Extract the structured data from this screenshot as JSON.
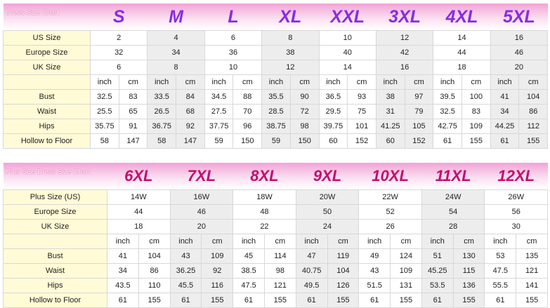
{
  "tables": [
    {
      "title": "Dress Size Chart",
      "sizes": [
        "S",
        "M",
        "L",
        "XL",
        "XXL",
        "3XL",
        "4XL",
        "5XL"
      ],
      "size_rows": [
        {
          "label": "US Size",
          "values": [
            2,
            4,
            6,
            8,
            10,
            12,
            14,
            16
          ]
        },
        {
          "label": "Europe Size",
          "values": [
            32,
            34,
            36,
            38,
            40,
            42,
            44,
            46
          ]
        },
        {
          "label": "UK Size",
          "values": [
            6,
            8,
            10,
            12,
            14,
            16,
            18,
            20
          ]
        }
      ],
      "units": [
        "inch",
        "cm"
      ],
      "measure_rows": [
        {
          "label": "Bust",
          "values": [
            32.5,
            83,
            33.5,
            84,
            34.5,
            88,
            35.5,
            90,
            36.5,
            93,
            38,
            97,
            39.5,
            100,
            41,
            104
          ]
        },
        {
          "label": "Waist",
          "values": [
            25.5,
            65,
            26.5,
            68,
            27.5,
            70,
            28.5,
            72,
            29.5,
            75,
            31,
            79,
            32.5,
            83,
            34,
            86
          ]
        },
        {
          "label": "Hips",
          "values": [
            35.75,
            91,
            36.75,
            92,
            37.75,
            96,
            38.75,
            98,
            39.75,
            101,
            41.25,
            105,
            42.75,
            109,
            44.25,
            112
          ]
        },
        {
          "label": "Hollow to Floor",
          "values": [
            58,
            147,
            58,
            147,
            59,
            150,
            59,
            150,
            60,
            152,
            60,
            152,
            61,
            155,
            61,
            155
          ]
        }
      ]
    },
    {
      "title": "Plus Size Dress Size Chart",
      "sizes": [
        "6XL",
        "7XL",
        "8XL",
        "9XL",
        "10XL",
        "11XL",
        "12XL"
      ],
      "size_rows": [
        {
          "label": "Plus Size (US)",
          "values": [
            "14W",
            "16W",
            "18W",
            "20W",
            "22W",
            "24W",
            "26W"
          ]
        },
        {
          "label": "Europe Size",
          "values": [
            44,
            46,
            48,
            50,
            52,
            54,
            56
          ]
        },
        {
          "label": "UK Size",
          "values": [
            18,
            20,
            22,
            24,
            26,
            28,
            30
          ]
        }
      ],
      "units": [
        "inch",
        "cm"
      ],
      "measure_rows": [
        {
          "label": "Bust",
          "values": [
            41,
            104,
            43,
            109,
            45,
            114,
            47,
            119,
            49,
            124,
            51,
            130,
            53,
            135
          ]
        },
        {
          "label": "Waist",
          "values": [
            34,
            86,
            36.25,
            92,
            38.5,
            98,
            40.75,
            104,
            43,
            109,
            45.25,
            115,
            47.5,
            121
          ]
        },
        {
          "label": "Hips",
          "values": [
            43.5,
            110,
            45.5,
            116,
            47.5,
            121,
            49.5,
            126,
            51.5,
            131,
            53.5,
            136,
            55.5,
            141
          ]
        },
        {
          "label": "Hollow to Floor",
          "values": [
            61,
            155,
            61,
            155,
            61,
            155,
            61,
            155,
            61,
            155,
            61,
            155,
            61,
            155
          ]
        }
      ]
    }
  ]
}
